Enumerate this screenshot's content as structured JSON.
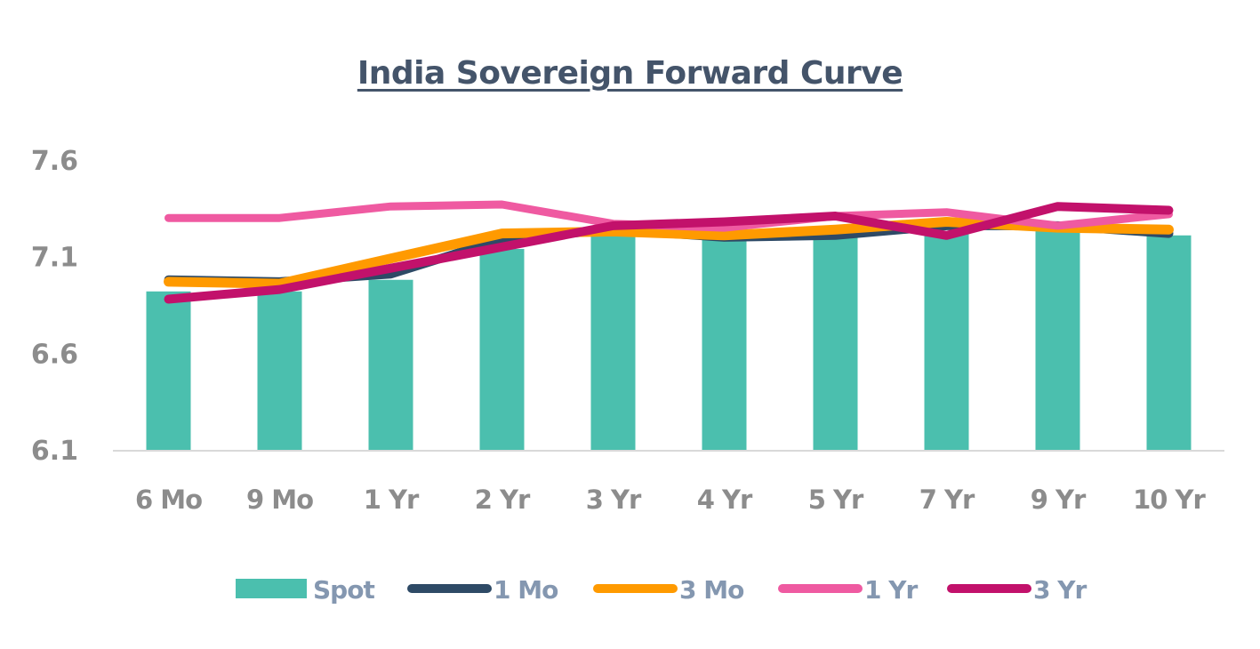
{
  "chart_data": {
    "type": "bar",
    "title": "India Sovereign Forward Curve",
    "xlabel": "",
    "ylabel": "",
    "ylim": [
      6.1,
      7.6
    ],
    "yticks": [
      "7.6",
      "7.1",
      "6.6",
      "6.1"
    ],
    "ytick_values": [
      7.6,
      7.1,
      6.6,
      6.1
    ],
    "grid": false,
    "legend_position": "bottom",
    "categories": [
      "6 Mo",
      "9 Mo",
      "1 Yr",
      "2 Yr",
      "3 Yr",
      "4 Yr",
      "5 Yr",
      "7 Yr",
      "9 Yr",
      "10 Yr"
    ],
    "series": [
      {
        "name": "Spot",
        "kind": "bar",
        "color": "#4BBFAE",
        "values": [
          6.92,
          6.92,
          6.98,
          7.14,
          7.22,
          7.2,
          7.21,
          7.22,
          7.25,
          7.21
        ]
      },
      {
        "name": "1 Mo",
        "kind": "line",
        "color": "#2E4A66",
        "values": [
          6.98,
          6.97,
          7.01,
          7.19,
          7.24,
          7.2,
          7.21,
          7.26,
          7.26,
          7.22
        ]
      },
      {
        "name": "3 Mo",
        "kind": "line",
        "color": "#FF9A00",
        "values": [
          6.97,
          6.96,
          7.09,
          7.22,
          7.23,
          7.21,
          7.24,
          7.28,
          7.25,
          7.24
        ]
      },
      {
        "name": "1 Yr",
        "kind": "line",
        "color": "#EF5AA1",
        "values": [
          7.3,
          7.3,
          7.36,
          7.37,
          7.27,
          7.25,
          7.31,
          7.33,
          7.26,
          7.32
        ]
      },
      {
        "name": "3 Yr",
        "kind": "line",
        "color": "#C2116B",
        "values": [
          6.88,
          6.93,
          7.04,
          7.15,
          7.26,
          7.28,
          7.31,
          7.21,
          7.36,
          7.34
        ]
      }
    ]
  },
  "colors": {
    "title": "#44546A",
    "tick_label": "#8C8C8C",
    "legend_label": "#8497B0",
    "axis_line": "#D9D9D9"
  }
}
